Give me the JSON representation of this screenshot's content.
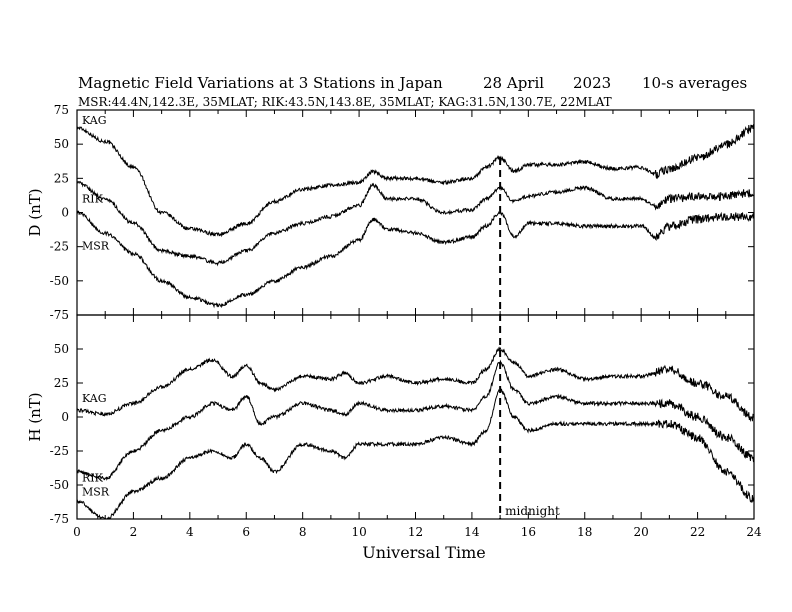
{
  "header": {
    "title": "Magnetic Field Variations at 3 Stations in Japan",
    "date": "28  April",
    "year": "2023",
    "averaging": "10-s averages",
    "stations_line": "MSR:44.4N,142.3E, 35MLAT;  RIK:43.5N,143.8E, 35MLAT;  KAG:31.5N,130.7E, 22MLAT"
  },
  "annotation": {
    "midnight_label": "midnight",
    "midnight_ut": 15
  },
  "chart_data": [
    {
      "type": "line",
      "panel": "D",
      "ylabel": "D (nT)",
      "xlim": [
        0,
        24
      ],
      "ylim": [
        -75,
        75
      ],
      "yticks": [
        "75",
        "50",
        "25",
        "0",
        "-25",
        "-50",
        "-75"
      ],
      "ytick_values": [
        75,
        50,
        25,
        0,
        -25,
        -50,
        -75
      ],
      "x": [
        0,
        1,
        2,
        3,
        4,
        5,
        6,
        7,
        8,
        9,
        10,
        10.5,
        11,
        12,
        13,
        14,
        14.5,
        15,
        15.5,
        16,
        17,
        18,
        19,
        20,
        20.5,
        21,
        22,
        23,
        24
      ],
      "series": [
        {
          "name": "KAG",
          "values": [
            62,
            52,
            33,
            0,
            -12,
            -16,
            -8,
            8,
            17,
            20,
            22,
            30,
            25,
            25,
            22,
            25,
            33,
            40,
            30,
            35,
            35,
            37,
            32,
            33,
            28,
            32,
            40,
            50,
            62
          ]
        },
        {
          "name": "RIK",
          "values": [
            22,
            10,
            -8,
            -28,
            -32,
            -37,
            -28,
            -15,
            -8,
            -3,
            5,
            20,
            10,
            10,
            0,
            2,
            10,
            18,
            8,
            12,
            15,
            18,
            10,
            10,
            5,
            10,
            12,
            12,
            15
          ]
        },
        {
          "name": "MSR",
          "values": [
            0,
            -15,
            -30,
            -50,
            -62,
            -68,
            -60,
            -50,
            -40,
            -32,
            -20,
            -5,
            -12,
            -15,
            -22,
            -18,
            -10,
            0,
            -18,
            -8,
            -8,
            -10,
            -10,
            -10,
            -18,
            -10,
            -5,
            -3,
            -3
          ]
        }
      ]
    },
    {
      "type": "line",
      "panel": "H",
      "ylabel": "H (nT)",
      "xlabel": "Universal Time",
      "xlim": [
        0,
        24
      ],
      "ylim": [
        -75,
        75
      ],
      "xticks": [
        "0",
        "2",
        "4",
        "6",
        "8",
        "10",
        "12",
        "14",
        "16",
        "18",
        "20",
        "22",
        "24"
      ],
      "xtick_values": [
        0,
        2,
        4,
        6,
        8,
        10,
        12,
        14,
        16,
        18,
        20,
        22,
        24
      ],
      "yticks": [
        "50",
        "25",
        "0",
        "-25",
        "-50",
        "-75"
      ],
      "ytick_values": [
        50,
        25,
        0,
        -25,
        -50,
        -75
      ],
      "x": [
        0,
        1,
        2,
        3,
        4,
        4.8,
        5.5,
        6,
        6.5,
        7,
        8,
        9,
        9.5,
        10,
        11,
        12,
        13,
        14,
        14.5,
        15,
        15.5,
        16,
        17,
        18,
        19,
        20,
        21,
        22,
        23,
        24
      ],
      "series": [
        {
          "name": "KAG",
          "values": [
            5,
            2,
            10,
            22,
            35,
            42,
            30,
            38,
            25,
            20,
            30,
            28,
            32,
            25,
            30,
            25,
            28,
            25,
            35,
            50,
            40,
            30,
            35,
            28,
            30,
            30,
            35,
            25,
            15,
            0
          ]
        },
        {
          "name": "RIK",
          "values": [
            -40,
            -45,
            -25,
            -10,
            0,
            10,
            5,
            15,
            -5,
            0,
            10,
            5,
            2,
            10,
            5,
            5,
            8,
            5,
            15,
            40,
            20,
            10,
            15,
            10,
            10,
            10,
            10,
            0,
            -15,
            -30
          ]
        },
        {
          "name": "MSR",
          "values": [
            -62,
            -75,
            -55,
            -45,
            -30,
            -25,
            -30,
            -20,
            -30,
            -40,
            -20,
            -25,
            -30,
            -20,
            -20,
            -20,
            -15,
            -20,
            -10,
            20,
            0,
            -10,
            -5,
            -5,
            -5,
            -5,
            -5,
            -15,
            -40,
            -60
          ]
        }
      ]
    }
  ]
}
